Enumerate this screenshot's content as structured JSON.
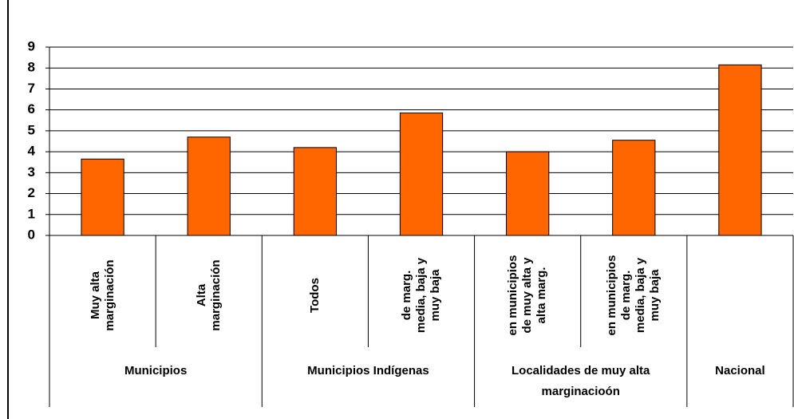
{
  "chart_data": {
    "type": "bar",
    "groups": [
      {
        "name": "Municipios",
        "categories": [
          "Muy alta marginación",
          "Alta marginación"
        ]
      },
      {
        "name": "Municipios Indígenas",
        "categories": [
          "Todos",
          "de marg. media, baja y muy baja"
        ]
      },
      {
        "name": "Localidades de muy alta marginacioón",
        "categories": [
          "en municipios de muy alta y alta marg.",
          "en municipios de marg. media, baja y muy baja"
        ]
      },
      {
        "name": "Nacional",
        "categories": [
          null
        ]
      }
    ],
    "values": [
      3.65,
      4.7,
      4.2,
      5.85,
      4.0,
      4.55,
      8.15
    ],
    "color": "#ff6600",
    "ylim": [
      0,
      9
    ],
    "yticks": [
      0,
      1,
      2,
      3,
      4,
      5,
      6,
      7,
      8,
      9
    ],
    "grid": true
  }
}
